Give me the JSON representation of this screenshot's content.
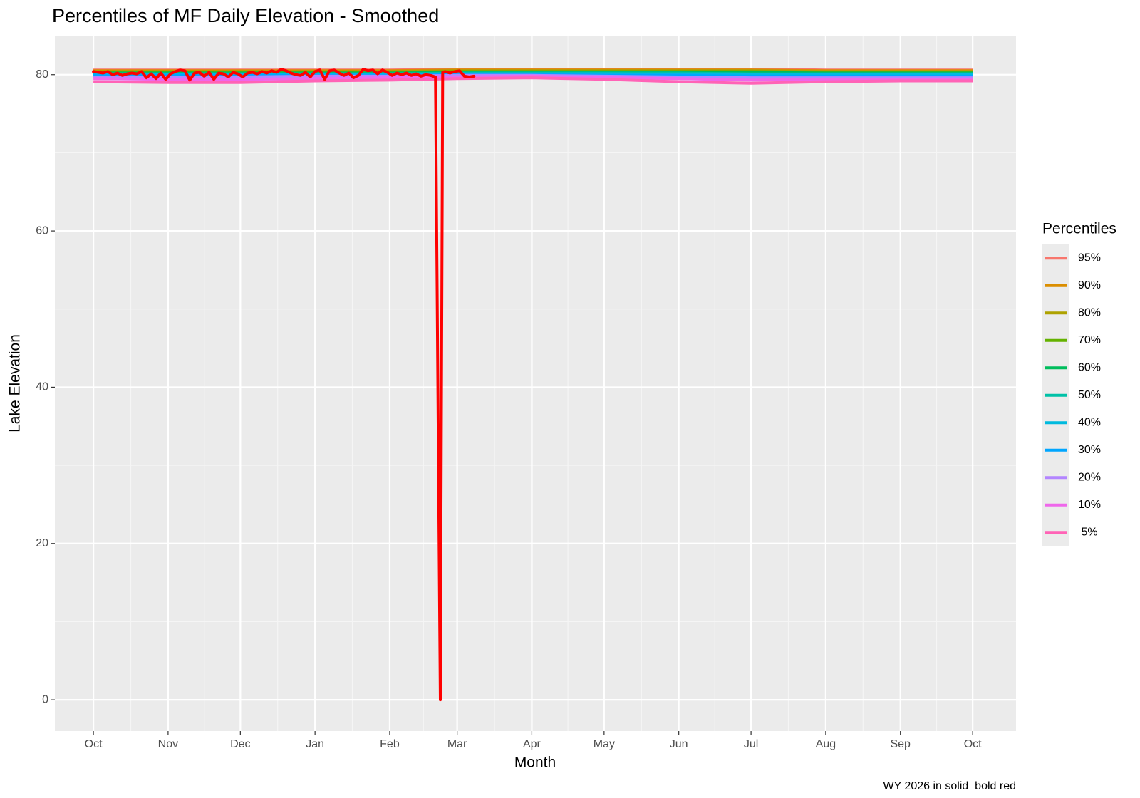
{
  "chart_data": {
    "type": "line",
    "title": "Percentiles of MF Daily Elevation - Smoothed",
    "x_label": "Month",
    "y_label": "Lake Elevation",
    "caption": "WY 2026 in solid  bold red",
    "legend_title": "Percentiles",
    "legend_position": "right",
    "grid": true,
    "xlim": [
      -16,
      383
    ],
    "xticks": [
      {
        "value": 0,
        "label": "Oct"
      },
      {
        "value": 31,
        "label": "Nov"
      },
      {
        "value": 61,
        "label": "Dec"
      },
      {
        "value": 92,
        "label": "Jan"
      },
      {
        "value": 123,
        "label": "Feb"
      },
      {
        "value": 151,
        "label": "Mar"
      },
      {
        "value": 182,
        "label": "Apr"
      },
      {
        "value": 212,
        "label": "May"
      },
      {
        "value": 243,
        "label": "Jun"
      },
      {
        "value": 273,
        "label": "Jul"
      },
      {
        "value": 304,
        "label": "Aug"
      },
      {
        "value": 335,
        "label": "Sep"
      },
      {
        "value": 365,
        "label": "Oct"
      }
    ],
    "ylim": [
      -4,
      84.9
    ],
    "yticks": [
      0,
      20,
      40,
      60,
      80
    ],
    "x": [
      0,
      31,
      61,
      92,
      123,
      151,
      182,
      212,
      243,
      273,
      304,
      335,
      365
    ],
    "series": [
      {
        "name": "95%",
        "color": "#F8766D",
        "values": [
          80.6,
          80.6,
          80.6,
          80.6,
          80.6,
          80.7,
          80.7,
          80.7,
          80.7,
          80.7,
          80.6,
          80.6,
          80.6
        ]
      },
      {
        "name": "90%",
        "color": "#DB8E00",
        "values": [
          80.5,
          80.5,
          80.5,
          80.5,
          80.5,
          80.6,
          80.6,
          80.6,
          80.6,
          80.6,
          80.5,
          80.5,
          80.5
        ]
      },
      {
        "name": "80%",
        "color": "#AEA200",
        "values": [
          80.4,
          80.4,
          80.4,
          80.4,
          80.4,
          80.5,
          80.5,
          80.5,
          80.5,
          80.5,
          80.4,
          80.4,
          80.4
        ]
      },
      {
        "name": "70%",
        "color": "#64B200",
        "values": [
          80.3,
          80.3,
          80.3,
          80.3,
          80.3,
          80.4,
          80.4,
          80.4,
          80.4,
          80.4,
          80.3,
          80.3,
          80.3
        ]
      },
      {
        "name": "60%",
        "color": "#00BD5C",
        "values": [
          80.2,
          80.2,
          80.2,
          80.2,
          80.2,
          80.3,
          80.3,
          80.3,
          80.3,
          80.3,
          80.2,
          80.2,
          80.2
        ]
      },
      {
        "name": "50%",
        "color": "#00C1A7",
        "values": [
          80.1,
          80.1,
          80.1,
          80.1,
          80.1,
          80.2,
          80.2,
          80.2,
          80.2,
          80.1,
          80.1,
          80.1,
          80.1
        ]
      },
      {
        "name": "40%",
        "color": "#00BADE",
        "values": [
          80.0,
          80.0,
          80.0,
          80.0,
          80.0,
          80.1,
          80.1,
          80.1,
          80.0,
          80.0,
          80.0,
          80.0,
          80.0
        ]
      },
      {
        "name": "30%",
        "color": "#00A6FF",
        "values": [
          79.9,
          79.9,
          79.9,
          79.9,
          79.9,
          80.0,
          80.0,
          79.9,
          79.9,
          79.8,
          79.8,
          79.8,
          79.8
        ]
      },
      {
        "name": "20%",
        "color": "#B385FF",
        "values": [
          79.7,
          79.7,
          79.7,
          79.8,
          79.8,
          79.9,
          79.9,
          79.8,
          79.7,
          79.6,
          79.6,
          79.6,
          79.6
        ]
      },
      {
        "name": "10%",
        "color": "#EF67EB",
        "values": [
          79.5,
          79.4,
          79.4,
          79.5,
          79.6,
          79.7,
          79.8,
          79.6,
          79.5,
          79.3,
          79.4,
          79.4,
          79.4
        ]
      },
      {
        "name": " 5%",
        "color": "#FF63B6",
        "values": [
          79.1,
          79.0,
          79.0,
          79.2,
          79.3,
          79.5,
          79.6,
          79.4,
          79.1,
          78.9,
          79.1,
          79.2,
          79.2
        ]
      }
    ],
    "current": {
      "color": "#FF0000",
      "x": [
        0,
        2,
        4,
        6,
        8,
        10,
        12,
        14,
        16,
        18,
        20,
        22,
        24,
        26,
        28,
        30,
        32,
        34,
        36,
        38,
        40,
        42,
        44,
        46,
        48,
        50,
        52,
        54,
        56,
        58,
        60,
        62,
        64,
        66,
        68,
        70,
        72,
        74,
        76,
        78,
        80,
        82,
        84,
        86,
        88,
        90,
        92,
        94,
        96,
        98,
        100,
        102,
        104,
        106,
        108,
        110,
        112,
        114,
        116,
        118,
        120,
        122,
        124,
        126,
        128,
        130,
        132,
        134,
        136,
        138,
        140,
        142,
        144,
        145,
        146,
        148,
        150,
        152,
        154,
        156,
        158
      ],
      "values": [
        80.4,
        80.3,
        80.2,
        80.4,
        80.0,
        80.2,
        79.9,
        80.1,
        80.2,
        80.1,
        80.4,
        79.6,
        80.1,
        79.5,
        80.2,
        79.4,
        80.1,
        80.4,
        80.6,
        80.5,
        79.3,
        80.2,
        80.3,
        79.8,
        80.3,
        79.4,
        80.2,
        80.1,
        79.7,
        80.3,
        80.1,
        79.7,
        80.2,
        80.3,
        80.1,
        80.4,
        80.2,
        80.5,
        80.3,
        80.7,
        80.5,
        80.2,
        80.0,
        79.9,
        80.3,
        79.7,
        80.4,
        80.6,
        79.4,
        80.5,
        80.6,
        80.2,
        79.9,
        80.2,
        79.6,
        79.9,
        80.7,
        80.5,
        80.6,
        80.1,
        80.6,
        80.3,
        79.9,
        80.2,
        80.0,
        80.2,
        79.9,
        80.1,
        79.8,
        80.0,
        79.9,
        79.7,
        0,
        80.3,
        80.4,
        80.2,
        80.4,
        80.5,
        79.8,
        79.7,
        79.8
      ]
    }
  }
}
